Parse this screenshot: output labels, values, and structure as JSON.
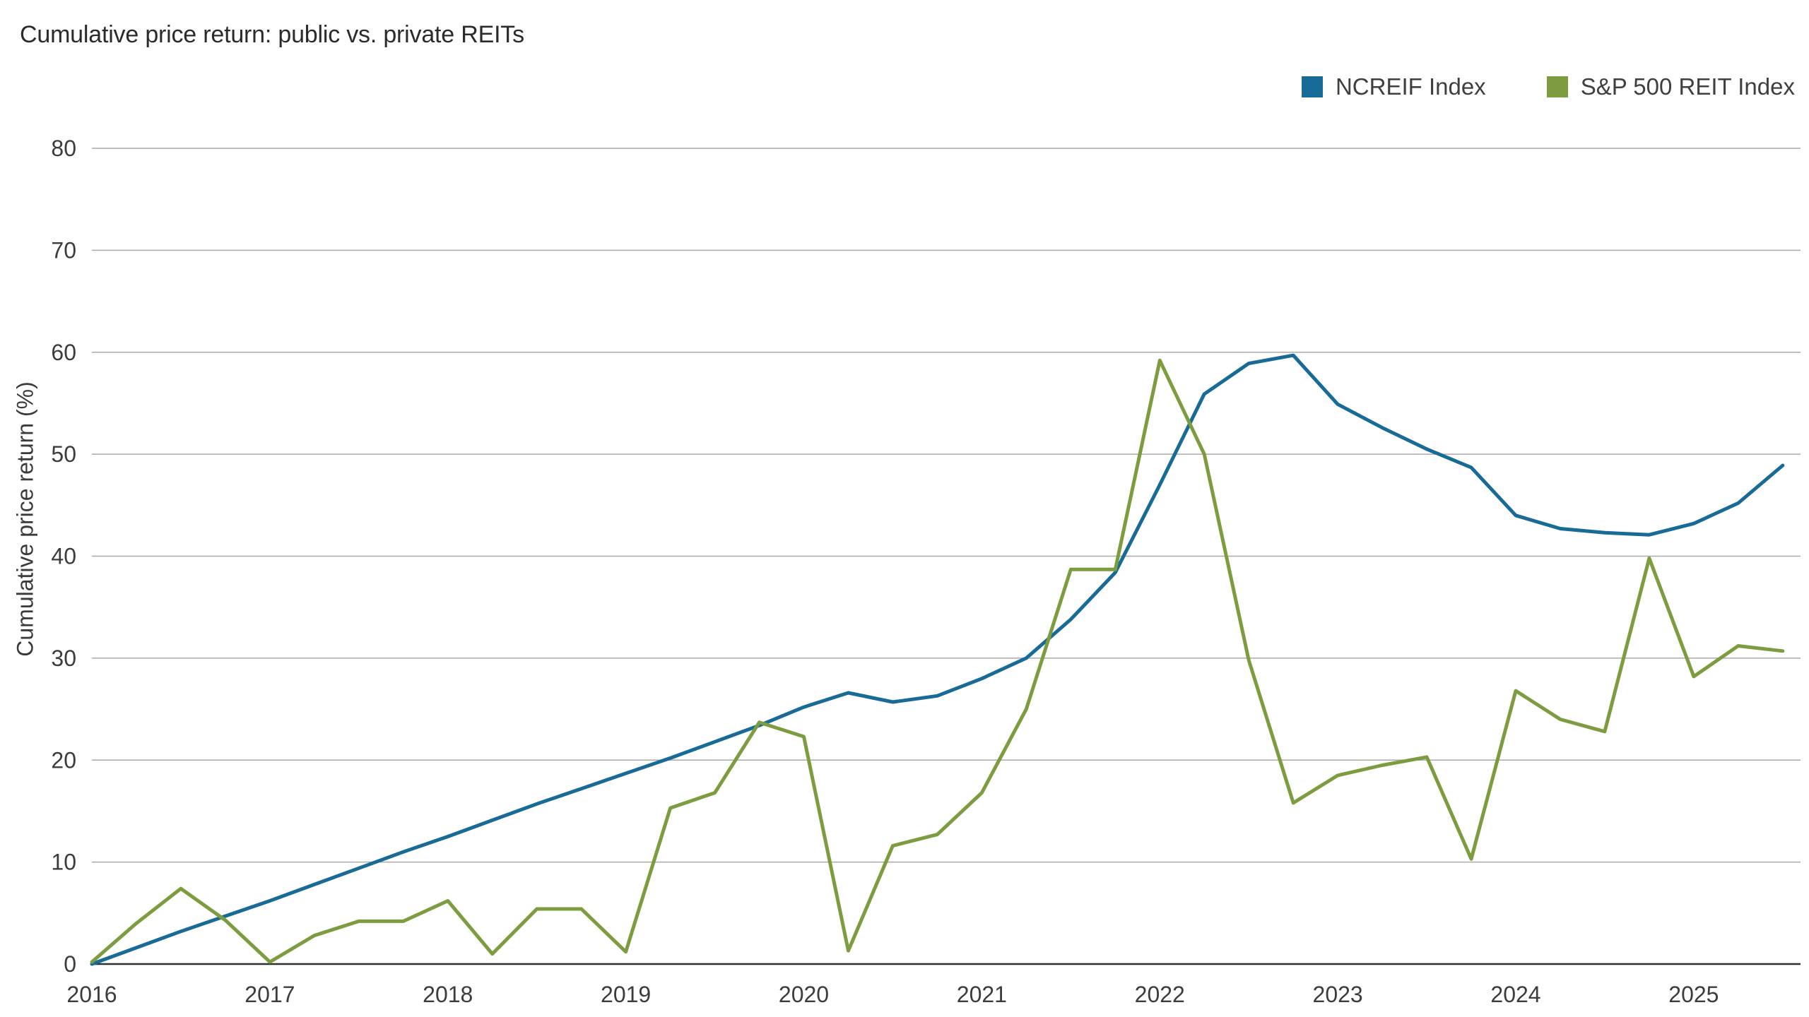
{
  "page": {
    "title": "Cumulative price return: public vs. private REITs"
  },
  "legend": {
    "items": [
      {
        "label": "NCREIF Index",
        "color": "#186a97"
      },
      {
        "label": "S&P 500 REIT Index",
        "color": "#7d9c3f"
      }
    ]
  },
  "y_axis": {
    "title": "Cumulative price return (%)"
  },
  "chart_data": {
    "type": "line",
    "title": "Cumulative price return: public vs. private REITs",
    "xlabel": "",
    "ylabel": "Cumulative price return (%)",
    "ylim": [
      0,
      80
    ],
    "xlim": [
      2016,
      2025.6
    ],
    "yticks": [
      0,
      10,
      20,
      30,
      40,
      50,
      60,
      70,
      80
    ],
    "xticks": [
      2016,
      2017,
      2018,
      2019,
      2020,
      2021,
      2022,
      2023,
      2024,
      2025
    ],
    "grid": "horizontal",
    "legend_position": "top-right",
    "x": [
      2016.0,
      2016.25,
      2016.5,
      2016.75,
      2017.0,
      2017.25,
      2017.5,
      2017.75,
      2018.0,
      2018.25,
      2018.5,
      2018.75,
      2019.0,
      2019.25,
      2019.5,
      2019.75,
      2020.0,
      2020.25,
      2020.5,
      2020.75,
      2021.0,
      2021.25,
      2021.5,
      2021.75,
      2022.0,
      2022.25,
      2022.5,
      2022.75,
      2023.0,
      2023.25,
      2023.5,
      2023.75,
      2024.0,
      2024.25,
      2024.5,
      2024.75,
      2025.0,
      2025.25,
      2025.5
    ],
    "series": [
      {
        "name": "NCREIF Index",
        "color": "#186a97",
        "values": [
          0,
          1.6,
          3.2,
          4.7,
          6.2,
          7.8,
          9.4,
          11.0,
          12.5,
          14.1,
          15.7,
          17.2,
          18.7,
          20.2,
          21.8,
          23.4,
          25.2,
          26.6,
          25.7,
          26.3,
          28.0,
          30.0,
          33.8,
          38.4,
          47.0,
          55.9,
          58.9,
          59.7,
          54.9,
          52.6,
          50.5,
          48.7,
          44.0,
          42.7,
          42.3,
          42.1,
          43.2,
          45.2,
          48.9
        ]
      },
      {
        "name": "S&P 500 REIT Index",
        "color": "#7d9c3f",
        "values": [
          0.2,
          4.0,
          7.4,
          4.3,
          0.2,
          2.8,
          4.2,
          4.2,
          6.2,
          1.0,
          5.4,
          5.4,
          1.2,
          15.3,
          16.8,
          23.7,
          22.3,
          1.3,
          11.6,
          12.7,
          16.8,
          25.0,
          38.7,
          38.7,
          59.2,
          50.0,
          29.8,
          15.8,
          18.5,
          19.5,
          20.3,
          10.3,
          26.8,
          24.0,
          22.8,
          39.8,
          28.2,
          31.2,
          30.7
        ]
      }
    ]
  }
}
